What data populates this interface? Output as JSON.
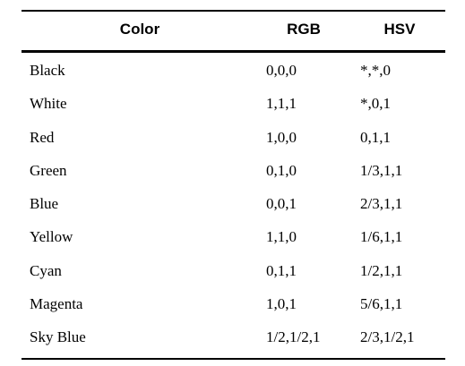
{
  "table": {
    "headers": {
      "color": "Color",
      "rgb": "RGB",
      "hsv": "HSV"
    },
    "rows": [
      {
        "name": "Black",
        "rgb": "0,0,0",
        "hsv": "*,*,0"
      },
      {
        "name": "White",
        "rgb": "1,1,1",
        "hsv": "*,0,1"
      },
      {
        "name": "Red",
        "rgb": "1,0,0",
        "hsv": "0,1,1"
      },
      {
        "name": "Green",
        "rgb": "0,1,0",
        "hsv": "1/3,1,1"
      },
      {
        "name": "Blue",
        "rgb": "0,0,1",
        "hsv": "2/3,1,1"
      },
      {
        "name": "Yellow",
        "rgb": "1,1,0",
        "hsv": "1/6,1,1"
      },
      {
        "name": "Cyan",
        "rgb": "0,1,1",
        "hsv": "1/2,1,1"
      },
      {
        "name": "Magenta",
        "rgb": "1,0,1",
        "hsv": "5/6,1,1"
      },
      {
        "name": "Sky Blue",
        "rgb": "1/2,1/2,1",
        "hsv": "2/3,1/2,1"
      }
    ]
  }
}
